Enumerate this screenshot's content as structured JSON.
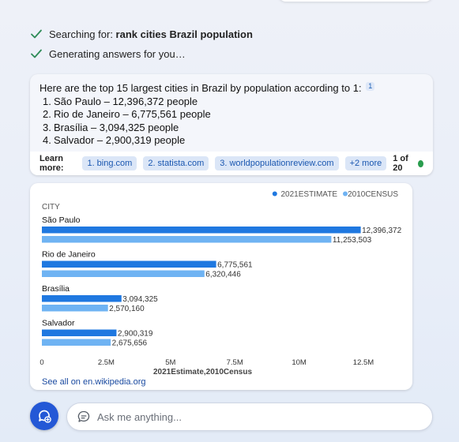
{
  "status": {
    "searching_prefix": "Searching for: ",
    "searching_query": "rank cities Brazil population",
    "generating": "Generating answers for you…"
  },
  "answer": {
    "intro": "Here are the top 15 largest cities in Brazil by population according to 1:",
    "citation": "1",
    "items": [
      {
        "num": "1.",
        "text": "São Paulo – 12,396,372 people"
      },
      {
        "num": "2.",
        "text": "Rio de Janeiro – 6,775,561 people"
      },
      {
        "num": "3.",
        "text": "Brasília – 3,094,325 people"
      },
      {
        "num": "4.",
        "text": "Salvador – 2,900,319 people"
      }
    ],
    "learn_more_label": "Learn more:",
    "sources": [
      "1. bing.com",
      "2. statista.com",
      "3. worldpopulationreview.com",
      "+2 more"
    ],
    "pager": "1 of 20"
  },
  "chart_data": {
    "type": "bar",
    "orientation": "horizontal",
    "category_header": "CITY",
    "categories": [
      "São Paulo",
      "Rio de Janeiro",
      "Brasília",
      "Salvador"
    ],
    "series": [
      {
        "name": "2021ESTIMATE",
        "color": "#1f78e0",
        "values": [
          12396372,
          6775561,
          3094325,
          2900319
        ]
      },
      {
        "name": "2010CENSUS",
        "color": "#6fb3f3",
        "values": [
          11253503,
          6320446,
          2570160,
          2675656
        ]
      }
    ],
    "value_labels": [
      [
        "12,396,372",
        "6,775,561",
        "3,094,325",
        "2,900,319"
      ],
      [
        "11,253,503",
        "6,320,446",
        "2,570,160",
        "2,675,656"
      ]
    ],
    "xticks": [
      0,
      2500000,
      5000000,
      7500000,
      10000000,
      12500000
    ],
    "xtick_labels": [
      "0",
      "2.5M",
      "5M",
      "7.5M",
      "10M",
      "12.5M"
    ],
    "xlim": [
      0,
      12500000
    ],
    "xlabel": "2021Estimate,2010Census",
    "legend_position": "top-right",
    "grid": false
  },
  "chart_link": "See all on en.wikipedia.org",
  "composer": {
    "placeholder": "Ask me anything..."
  },
  "colors": {
    "accent": "#2458d6",
    "chip_bg": "#dbe6f7",
    "chip_text": "#1a57b0",
    "status_check": "#2e8b57",
    "online_dot": "#2a9d4e"
  }
}
